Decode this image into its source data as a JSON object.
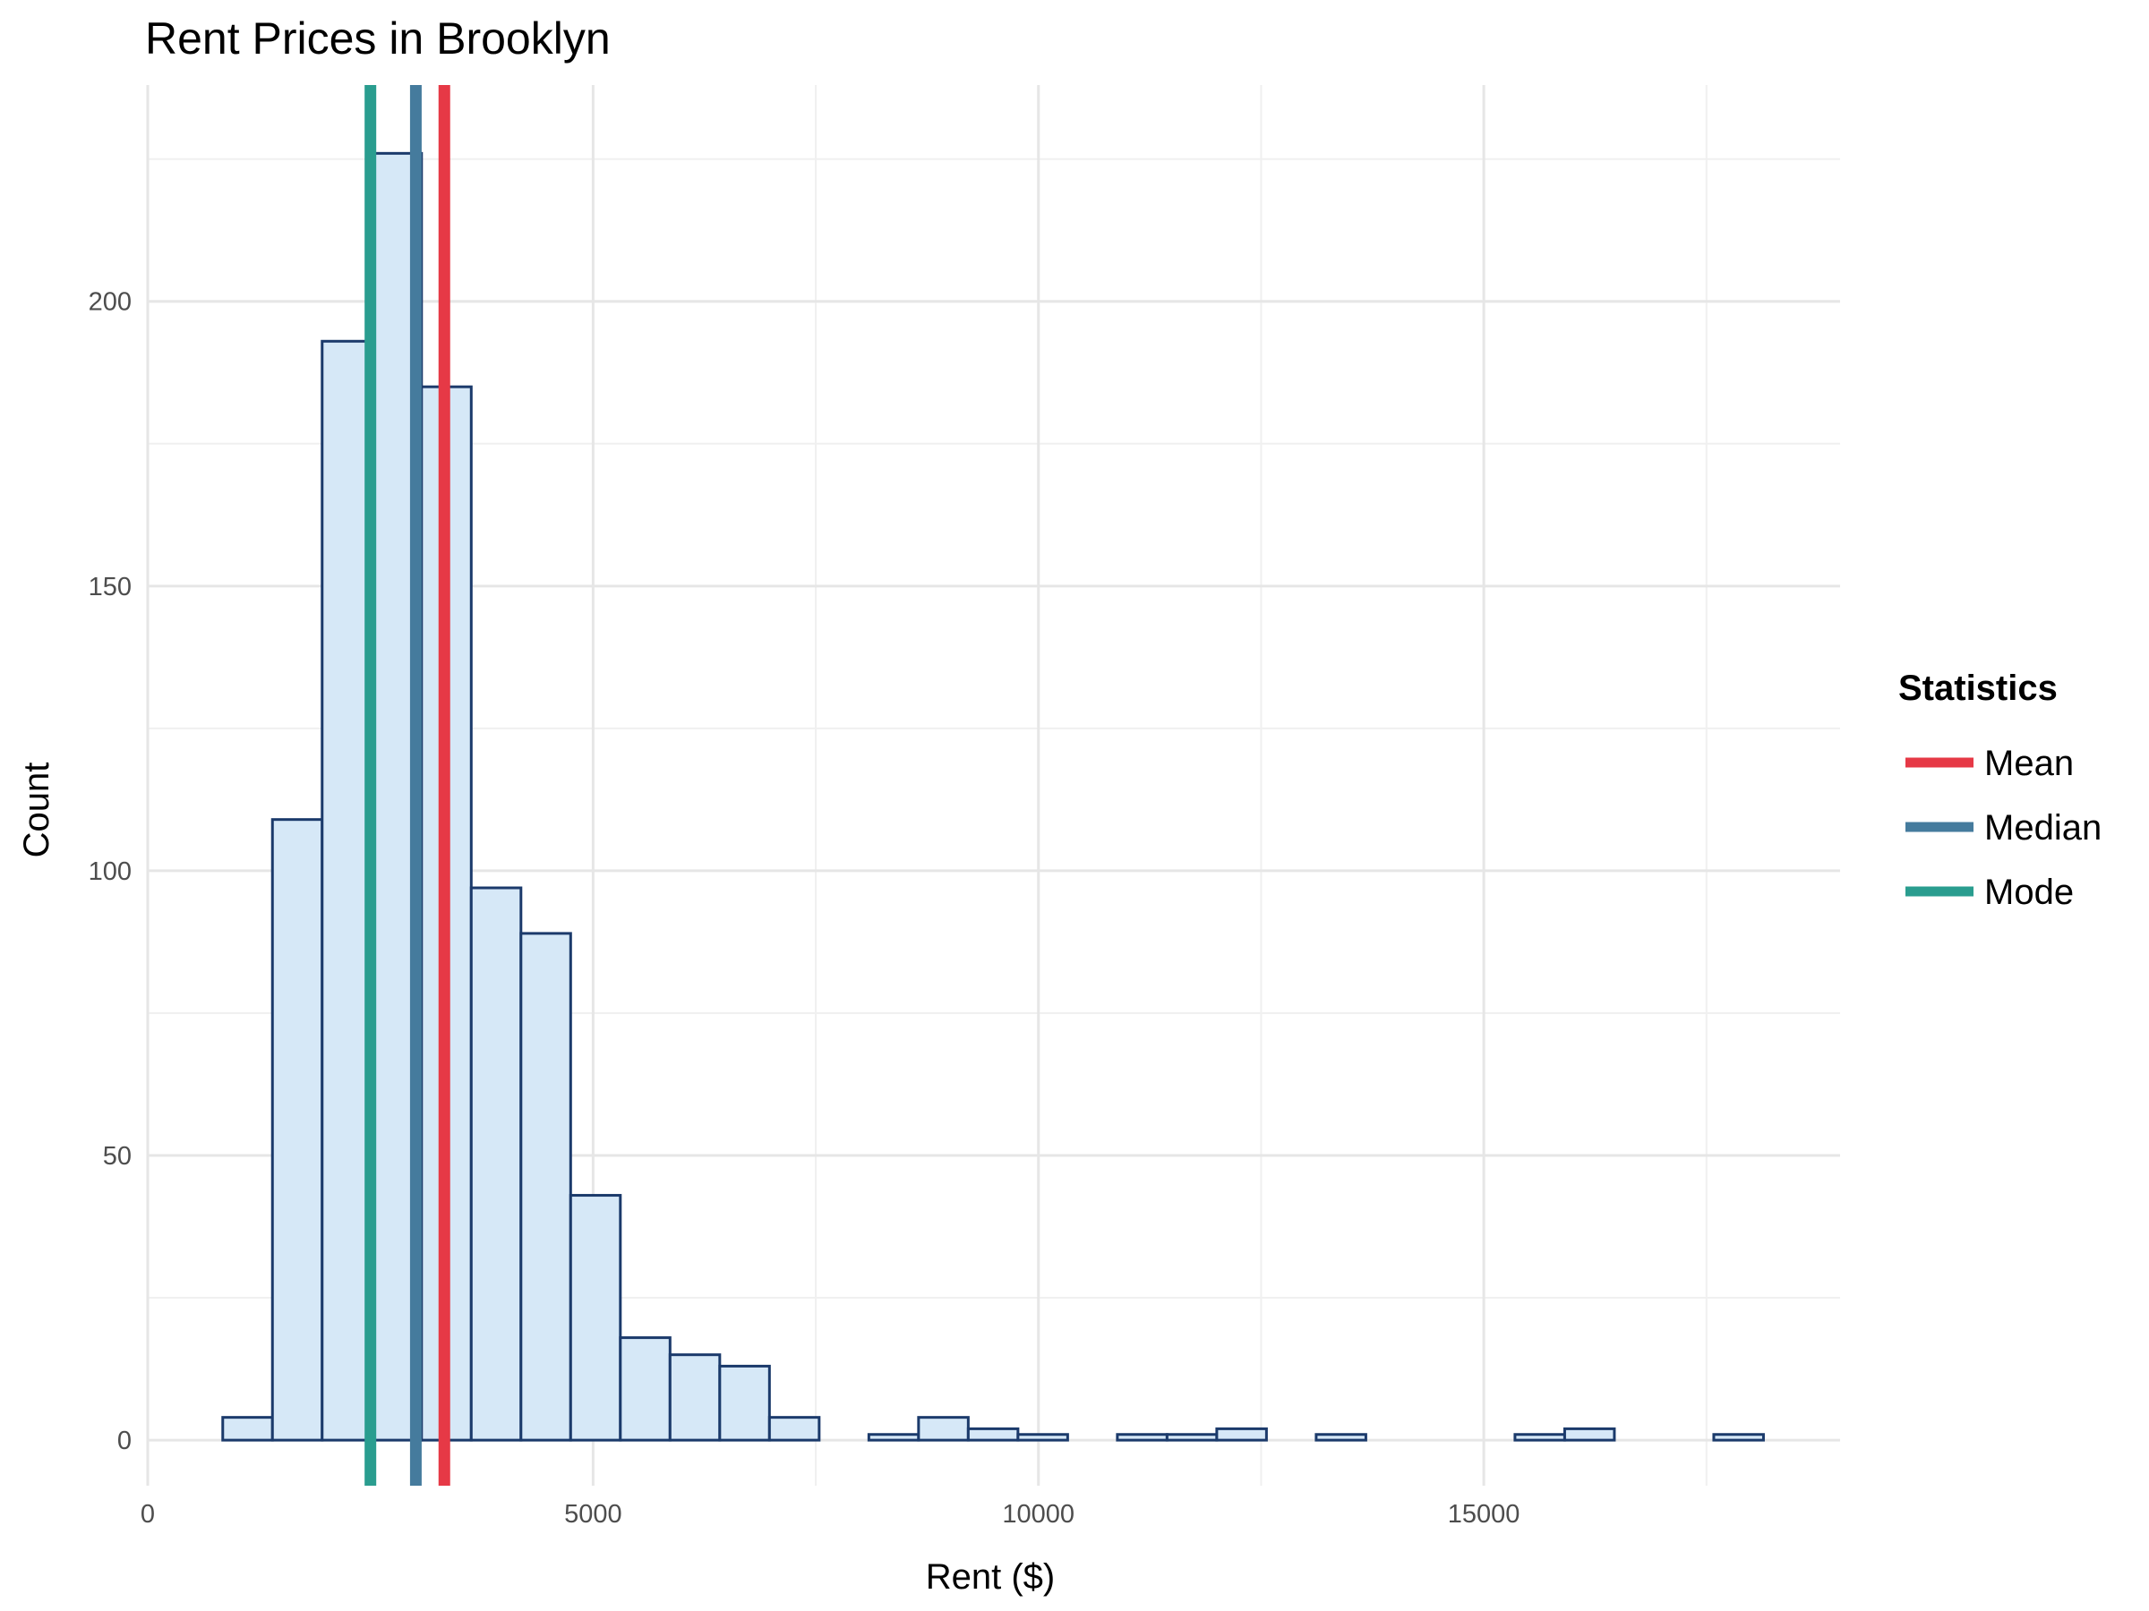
{
  "chart_data": {
    "type": "bar",
    "title": "Rent Prices in Brooklyn",
    "xlabel": "Rent ($)",
    "ylabel": "Count",
    "xlim": [
      0,
      19000
    ],
    "ylim": [
      -8,
      238
    ],
    "x_ticks": [
      0,
      5000,
      10000,
      15000
    ],
    "x_tick_labels": [
      "0",
      "5000",
      "10000",
      "15000"
    ],
    "y_ticks": [
      0,
      50,
      100,
      150,
      200
    ],
    "y_tick_labels": [
      "0",
      "50",
      "100",
      "150",
      "200"
    ],
    "grid": true,
    "bin_width": 558,
    "bins": [
      {
        "x0": 842,
        "x1": 1400,
        "count": 4
      },
      {
        "x0": 1400,
        "x1": 1958,
        "count": 109
      },
      {
        "x0": 1958,
        "x1": 2516,
        "count": 193
      },
      {
        "x0": 2516,
        "x1": 3074,
        "count": 226
      },
      {
        "x0": 3074,
        "x1": 3632,
        "count": 185
      },
      {
        "x0": 3632,
        "x1": 4190,
        "count": 97
      },
      {
        "x0": 4190,
        "x1": 4748,
        "count": 89
      },
      {
        "x0": 4748,
        "x1": 5306,
        "count": 43
      },
      {
        "x0": 5306,
        "x1": 5864,
        "count": 18
      },
      {
        "x0": 5864,
        "x1": 6422,
        "count": 15
      },
      {
        "x0": 6422,
        "x1": 6980,
        "count": 13
      },
      {
        "x0": 6980,
        "x1": 7538,
        "count": 4
      },
      {
        "x0": 7538,
        "x1": 8096,
        "count": 0
      },
      {
        "x0": 8096,
        "x1": 8654,
        "count": 1
      },
      {
        "x0": 8654,
        "x1": 9212,
        "count": 4
      },
      {
        "x0": 9212,
        "x1": 9770,
        "count": 2
      },
      {
        "x0": 9770,
        "x1": 10328,
        "count": 1
      },
      {
        "x0": 10328,
        "x1": 10886,
        "count": 0
      },
      {
        "x0": 10886,
        "x1": 11444,
        "count": 1
      },
      {
        "x0": 11444,
        "x1": 12002,
        "count": 1
      },
      {
        "x0": 12002,
        "x1": 12560,
        "count": 2
      },
      {
        "x0": 12560,
        "x1": 13118,
        "count": 0
      },
      {
        "x0": 13118,
        "x1": 13676,
        "count": 1
      },
      {
        "x0": 13676,
        "x1": 14234,
        "count": 0
      },
      {
        "x0": 14234,
        "x1": 14792,
        "count": 0
      },
      {
        "x0": 14792,
        "x1": 15350,
        "count": 0
      },
      {
        "x0": 15350,
        "x1": 15908,
        "count": 1
      },
      {
        "x0": 15908,
        "x1": 16466,
        "count": 2
      },
      {
        "x0": 16466,
        "x1": 17024,
        "count": 0
      },
      {
        "x0": 17024,
        "x1": 17582,
        "count": 0
      },
      {
        "x0": 17582,
        "x1": 18140,
        "count": 1
      }
    ],
    "bar_fill": "#d6e8f7",
    "bar_stroke": "#1b3a6b",
    "legend_title": "Statistics",
    "legend_position": "right",
    "reference_lines": [
      {
        "name": "Mean",
        "x": 3330,
        "color": "#e63946"
      },
      {
        "name": "Median",
        "x": 3010,
        "color": "#457b9d"
      },
      {
        "name": "Mode",
        "x": 2500,
        "color": "#2a9d8f"
      }
    ]
  }
}
